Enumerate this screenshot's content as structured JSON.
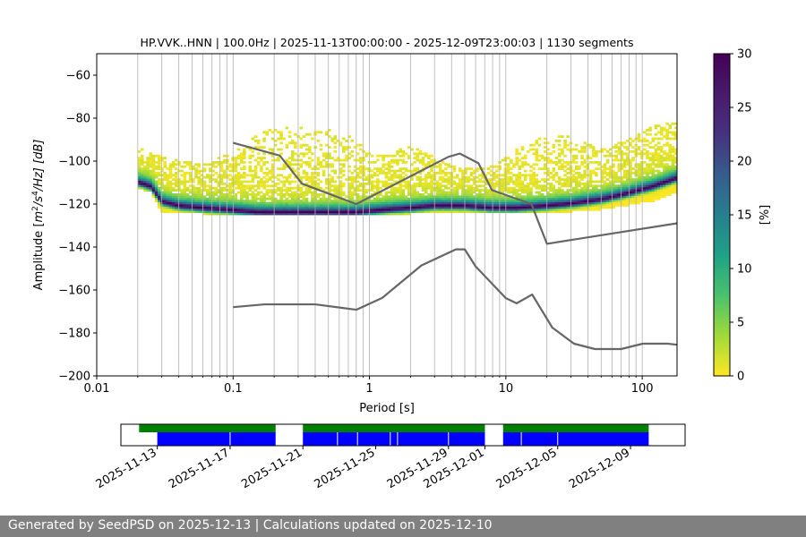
{
  "chart_data": [
    {
      "type": "heatmap",
      "title": "HP.VVK..HNN | 100.0Hz | 2025-11-13T00:00:00 - 2025-12-09T23:00:03 | 1130 segments",
      "xlabel": "Period [s]",
      "ylabel": "Amplitude [m²/s⁴/Hz] [dB]",
      "ylabel_parts": {
        "prefix": "Amplitude [",
        "m": "m",
        "sup2": "2",
        "mid": "/s",
        "sup4": "4",
        "end": "/Hz] [dB]"
      },
      "x_scale": "log",
      "xlim": [
        0.01,
        180
      ],
      "ylim": [
        -200,
        -50
      ],
      "xticks": [
        {
          "value": 0.01,
          "label": "0.01"
        },
        {
          "value": 0.1,
          "label": "0.1"
        },
        {
          "value": 1,
          "label": "1"
        },
        {
          "value": 10,
          "label": "10"
        },
        {
          "value": 100,
          "label": "100"
        }
      ],
      "yticks": [
        {
          "value": -60,
          "label": "−60"
        },
        {
          "value": -80,
          "label": "−80"
        },
        {
          "value": -100,
          "label": "−100"
        },
        {
          "value": -120,
          "label": "−120"
        },
        {
          "value": -140,
          "label": "−140"
        },
        {
          "value": -160,
          "label": "−160"
        },
        {
          "value": -180,
          "label": "−180"
        },
        {
          "value": -200,
          "label": "−200"
        }
      ],
      "grid": "vertical-log-grid",
      "colormap": "viridis_r",
      "colorbar": {
        "label": "[%]",
        "range": [
          0,
          30
        ],
        "ticks": [
          {
            "value": 0,
            "label": "0"
          },
          {
            "value": 5,
            "label": "5"
          },
          {
            "value": 10,
            "label": "10"
          },
          {
            "value": 15,
            "label": "15"
          },
          {
            "value": 20,
            "label": "20"
          },
          {
            "value": 25,
            "label": "25"
          },
          {
            "value": 30,
            "label": "30"
          }
        ]
      },
      "ppsd_columns": [
        {
          "period": 0.02,
          "min": -112,
          "max": -94,
          "mode": -110
        },
        {
          "period": 0.025,
          "min": -114,
          "max": -97,
          "mode": -112
        },
        {
          "period": 0.03,
          "min": -124,
          "max": -98,
          "mode": -119
        },
        {
          "period": 0.04,
          "min": -124,
          "max": -100,
          "mode": -121
        },
        {
          "period": 0.06,
          "min": -124,
          "max": -102,
          "mode": -122
        },
        {
          "period": 0.1,
          "min": -125,
          "max": -96,
          "mode": -123
        },
        {
          "period": 0.15,
          "min": -125,
          "max": -88,
          "mode": -124
        },
        {
          "period": 0.2,
          "min": -125,
          "max": -85,
          "mode": -124
        },
        {
          "period": 0.3,
          "min": -125,
          "max": -84,
          "mode": -124
        },
        {
          "period": 0.5,
          "min": -125,
          "max": -85,
          "mode": -124
        },
        {
          "period": 0.8,
          "min": -125,
          "max": -90,
          "mode": -124
        },
        {
          "period": 1.2,
          "min": -125,
          "max": -98,
          "mode": -123
        },
        {
          "period": 2,
          "min": -124,
          "max": -93,
          "mode": -122
        },
        {
          "period": 3,
          "min": -124,
          "max": -98,
          "mode": -121
        },
        {
          "period": 5,
          "min": -124,
          "max": -104,
          "mode": -121
        },
        {
          "period": 8,
          "min": -124,
          "max": -102,
          "mode": -122
        },
        {
          "period": 12,
          "min": -124,
          "max": -95,
          "mode": -122
        },
        {
          "period": 20,
          "min": -124,
          "max": -88,
          "mode": -121
        },
        {
          "period": 30,
          "min": -123,
          "max": -89,
          "mode": -120
        },
        {
          "period": 50,
          "min": -122,
          "max": -95,
          "mode": -118
        },
        {
          "period": 80,
          "min": -120,
          "max": -90,
          "mode": -115
        },
        {
          "period": 120,
          "min": -118,
          "max": -84,
          "mode": -112
        },
        {
          "period": 180,
          "min": -114,
          "max": -82,
          "mode": -108
        }
      ],
      "series": [
        {
          "role": "new-high-noise-model",
          "color": "#666666",
          "x": [
            0.1,
            0.22,
            0.32,
            0.8,
            3.8,
            4.6,
            6.3,
            7.9,
            15.4,
            20,
            354.8
          ],
          "y": [
            -91.5,
            -97.4,
            -110.5,
            -120,
            -98,
            -96.5,
            -101,
            -113.5,
            -120,
            -138.5,
            -126
          ]
        },
        {
          "role": "new-low-noise-model",
          "color": "#666666",
          "x": [
            0.1,
            0.17,
            0.4,
            0.8,
            1.24,
            2.4,
            4.3,
            5,
            6,
            10,
            12,
            15.6,
            21.9,
            31.6,
            45,
            70,
            101,
            154,
            180
          ],
          "y": [
            -168,
            -166.7,
            -166.7,
            -169.2,
            -163.7,
            -148.6,
            -141.1,
            -141.1,
            -149,
            -163.8,
            -166.2,
            -162.1,
            -177.5,
            -185,
            -187.5,
            -187.5,
            -185,
            -185,
            -185.5
          ]
        }
      ]
    },
    {
      "type": "timeline",
      "date_range": [
        "2025-11-11",
        "2025-12-12"
      ],
      "xticks": [
        {
          "date": "2025-11-13",
          "label": "2025-11-13"
        },
        {
          "date": "2025-11-17",
          "label": "2025-11-17"
        },
        {
          "date": "2025-11-21",
          "label": "2025-11-21"
        },
        {
          "date": "2025-11-25",
          "label": "2025-11-25"
        },
        {
          "date": "2025-11-29",
          "label": "2025-11-29"
        },
        {
          "date": "2025-12-01",
          "label": "2025-12-01"
        },
        {
          "date": "2025-12-05",
          "label": "2025-12-05"
        },
        {
          "date": "2025-12-09",
          "label": "2025-12-09"
        }
      ],
      "available_data": {
        "color": "#008000",
        "intervals": [
          [
            "2025-11-12",
            "2025-11-19.5"
          ],
          [
            "2025-11-21",
            "2025-12-01"
          ],
          [
            "2025-12-02",
            "2025-12-10"
          ]
        ]
      },
      "used_data": {
        "color": "#0000ff",
        "intervals": [
          [
            "2025-11-13",
            "2025-11-19.5"
          ],
          [
            "2025-11-21",
            "2025-12-01"
          ],
          [
            "2025-12-02",
            "2025-12-10"
          ]
        ],
        "gaps": [
          "2025-11-17",
          "2025-11-22.9",
          "2025-11-24",
          "2025-11-25.8",
          "2025-11-26.2",
          "2025-11-29",
          "2025-12-03",
          "2025-12-05"
        ]
      }
    }
  ],
  "footer": {
    "text": "Generated by SeedPSD on 2025-12-13 | Calculations updated on 2025-12-10"
  }
}
